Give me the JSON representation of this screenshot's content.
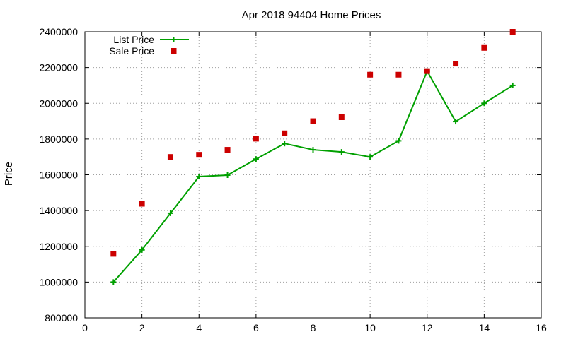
{
  "chart_data": {
    "type": "line",
    "title": "Apr 2018 94404 Home Prices",
    "xlabel": "",
    "ylabel": "Price",
    "xlim": [
      0,
      16
    ],
    "ylim": [
      800000,
      2400000
    ],
    "xticks": [
      0,
      2,
      4,
      6,
      8,
      10,
      12,
      14,
      16
    ],
    "yticks": [
      800000,
      1000000,
      1200000,
      1400000,
      1600000,
      1800000,
      2000000,
      2200000,
      2400000
    ],
    "grid": true,
    "legend_position": "top-left",
    "series": [
      {
        "name": "List Price",
        "style": "line-points",
        "marker": "plus",
        "color": "#00a000",
        "x": [
          1,
          2,
          3,
          4,
          5,
          6,
          7,
          8,
          9,
          10,
          11,
          12,
          13,
          14,
          15
        ],
        "y": [
          1000000,
          1180000,
          1385000,
          1590000,
          1598000,
          1688000,
          1775000,
          1740000,
          1728000,
          1700000,
          1790000,
          2180000,
          1898000,
          2000000,
          2100000
        ]
      },
      {
        "name": "Sale Price",
        "style": "points",
        "marker": "square",
        "color": "#cc0000",
        "x": [
          1,
          2,
          3,
          4,
          5,
          6,
          7,
          8,
          9,
          10,
          11,
          12,
          13,
          14,
          15
        ],
        "y": [
          1158000,
          1438000,
          1700000,
          1712000,
          1740000,
          1802000,
          1832000,
          1900000,
          1922000,
          2160000,
          2160000,
          2180000,
          2222000,
          2310000,
          2400000
        ]
      }
    ]
  }
}
